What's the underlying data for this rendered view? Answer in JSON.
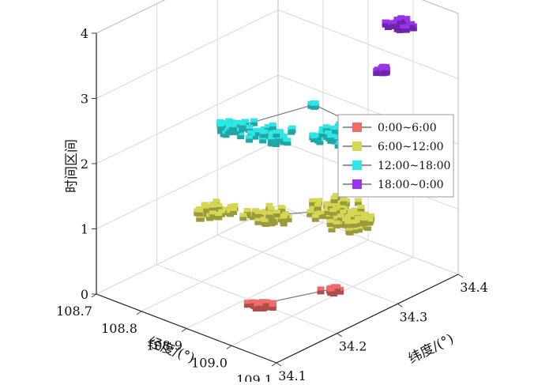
{
  "chart_data": {
    "type": "scatter",
    "projection": "3d",
    "x_axis": {
      "label": "经度/(°)",
      "ticks": [
        "108.7",
        "108.8",
        "108.9",
        "109.0",
        "109.1"
      ],
      "range": [
        108.7,
        109.1
      ]
    },
    "y_axis": {
      "label": "纬度/(°)",
      "ticks": [
        "34.1",
        "34.2",
        "34.3",
        "34.4"
      ],
      "range": [
        34.1,
        34.4
      ]
    },
    "z_axis": {
      "label": "时间区间",
      "ticks": [
        "0",
        "1",
        "2",
        "3",
        "4"
      ],
      "range": [
        0,
        4
      ]
    },
    "grid": true,
    "legend_position": "right",
    "series": [
      {
        "name": "0:00~6:00",
        "color": "#f26b6b",
        "z": 0,
        "clusters": [
          {
            "lon": 108.93,
            "lat": 34.2,
            "spread": 0.025
          },
          {
            "lon": 108.98,
            "lat": 34.28,
            "spread": 0.015
          }
        ],
        "connections": [
          [
            0,
            1
          ]
        ]
      },
      {
        "name": "6:00~12:00",
        "color": "#d6d655",
        "z": 1,
        "clusters": [
          {
            "lon": 108.8,
            "lat": 34.22,
            "spread": 0.04
          },
          {
            "lon": 108.88,
            "lat": 34.25,
            "spread": 0.05
          },
          {
            "lon": 108.95,
            "lat": 34.31,
            "spread": 0.06
          },
          {
            "lon": 109.0,
            "lat": 34.3,
            "spread": 0.05
          }
        ],
        "connections": [
          [
            1,
            2
          ]
        ]
      },
      {
        "name": "12:00~18:00",
        "color": "#2ee6e6",
        "z": 2,
        "clusters": [
          {
            "lon": 108.78,
            "lat": 34.27,
            "spread": 0.04
          },
          {
            "lon": 108.84,
            "lat": 34.28,
            "spread": 0.05
          },
          {
            "lon": 108.92,
            "lat": 34.33,
            "spread": 0.05
          },
          {
            "lon": 108.96,
            "lat": 34.36,
            "spread": 0.03
          },
          {
            "lon": 108.82,
            "lat": 34.37,
            "spread": 0.008
          },
          {
            "lon": 109.04,
            "lat": 34.34,
            "spread": 0.01
          }
        ],
        "connections": [
          [
            4,
            3
          ],
          [
            0,
            4
          ]
        ]
      },
      {
        "name": "18:00~0:00",
        "color": "#9a33ee",
        "z": 3,
        "clusters": [
          {
            "lon": 108.98,
            "lat": 34.36,
            "spread": 0.015
          },
          {
            "lon": 109.0,
            "lat": 34.38,
            "z_offset": 0.65,
            "spread": 0.035
          }
        ],
        "connections": []
      }
    ]
  }
}
